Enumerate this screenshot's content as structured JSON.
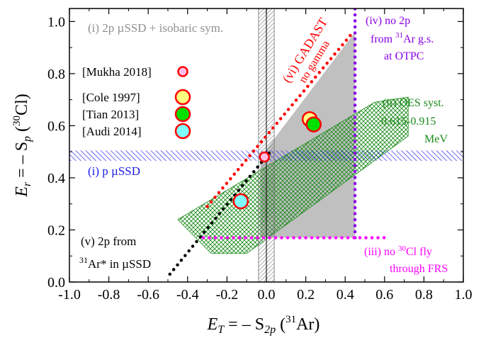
{
  "chart_data": {
    "type": "scatter",
    "xlabel": {
      "main": "E",
      "sub": "T",
      "mid": " = – S",
      "sub2": "2p",
      "open": " (",
      "sup": "31",
      "close": "Ar)"
    },
    "ylabel": {
      "main": "E",
      "sub": "r",
      "mid": " = – S",
      "sub2": "p",
      "open": " (",
      "sup": "30",
      "close": "Cl)"
    },
    "xlim": [
      -1.0,
      1.0
    ],
    "ylim": [
      0.0,
      1.05
    ],
    "xticks": [
      -1.0,
      -0.8,
      -0.6,
      -0.4,
      -0.2,
      0.0,
      0.2,
      0.4,
      0.6,
      0.8,
      1.0
    ],
    "yticks": [
      0.0,
      0.2,
      0.4,
      0.6,
      0.8,
      1.0
    ],
    "tick_format": 1,
    "colors": {
      "gray_band": "#aaaaaa",
      "blue": "#1a1ae6",
      "green": "#1a8a1a",
      "purple": "#8a00e6",
      "magenta": "#ff00ff",
      "red": "#ff0000",
      "black": "#000000",
      "gray_region": "#c0c0c0"
    },
    "regions": [
      {
        "id": "allowed-region",
        "color": "#c0c0c0",
        "polygon": [
          [
            -0.03,
            0.48
          ],
          [
            0.45,
            0.96
          ],
          [
            0.45,
            0.17
          ],
          [
            -0.03,
            0.17
          ]
        ]
      },
      {
        "id": "oes-band",
        "color": "#1a8a1a",
        "polygon": [
          [
            -0.45,
            0.24
          ],
          [
            0.55,
            0.69
          ],
          [
            0.72,
            0.71
          ],
          [
            0.72,
            0.56
          ],
          [
            -0.1,
            0.11
          ],
          [
            -0.28,
            0.11
          ]
        ]
      },
      {
        "id": "blue-band",
        "color": "#1a1ae6",
        "y_range": [
          0.465,
          0.505
        ]
      },
      {
        "id": "vertical-hatch-band",
        "color": "#808080",
        "x_range": [
          -0.04,
          0.04
        ]
      }
    ],
    "vertical_lines": [
      {
        "id": "center-line",
        "x": 0.0,
        "color": "#000000"
      }
    ],
    "series": [
      {
        "id": "gadast-line",
        "type": "dotted",
        "color": "#ff0000",
        "x": [
          -0.3,
          0.43
        ],
        "y": [
          0.29,
          0.95
        ]
      },
      {
        "id": "2p-31ar-line",
        "type": "dotted",
        "color": "#000000",
        "x": [
          -0.49,
          0.03
        ],
        "y": [
          0.03,
          0.51
        ]
      },
      {
        "id": "otpc-line",
        "type": "dotted",
        "color": "#8a00e6",
        "x": [
          0.45,
          0.45
        ],
        "y": [
          0.17,
          1.05
        ]
      },
      {
        "id": "frs-line",
        "type": "dotted",
        "color": "#ff00ff",
        "x": [
          -0.32,
          0.62
        ],
        "y": [
          0.17,
          0.17
        ]
      }
    ],
    "points": [
      {
        "id": "mukha-point",
        "x": -0.01,
        "y": 0.48,
        "fill": "#ffc0e8",
        "stroke": "#ff0000",
        "size": "small"
      },
      {
        "id": "cole-point",
        "x": 0.22,
        "y": 0.625,
        "fill": "#ffff80",
        "stroke": "#ff0000",
        "size": "large"
      },
      {
        "id": "tian-point",
        "x": 0.24,
        "y": 0.605,
        "fill": "#00e000",
        "stroke": "#ff0000",
        "size": "large"
      },
      {
        "id": "audi-point",
        "x": -0.13,
        "y": 0.31,
        "fill": "#80ffff",
        "stroke": "#ff0000",
        "size": "large"
      }
    ],
    "legend": [
      {
        "label": "[Mukha 2018]",
        "fill": "#ffc0e8",
        "size": "small"
      },
      {
        "label": "[Cole 1997]",
        "fill": "#ffff80",
        "size": "large"
      },
      {
        "label": "[Tian 2013]",
        "fill": "#00e000",
        "size": "large"
      },
      {
        "label": "[Audi 2014]",
        "fill": "#80ffff",
        "size": "large"
      }
    ],
    "annotations": {
      "i_2p": "(i) 2p µSSD + isobaric sym.",
      "i_p": "(i)  p µSSD",
      "ii_1": "(ii) OES syst.",
      "ii_2": "0.615-0.915",
      "ii_3": "MeV",
      "iii_1": "(iii) no ",
      "iii_sup": "30",
      "iii_2": "Cl fly",
      "iii_3": "through FRS",
      "iv_1": "(iv) no 2p",
      "iv_2": "from ",
      "iv_sup": "31",
      "iv_3": "Ar g.s.",
      "iv_4": "at OTPC",
      "v_1": "(v) 2p from",
      "v_sup": "31",
      "v_2": "Ar* in µSSD",
      "vi_1": "(vi) GADAST",
      "vi_2": "no gamma"
    }
  }
}
